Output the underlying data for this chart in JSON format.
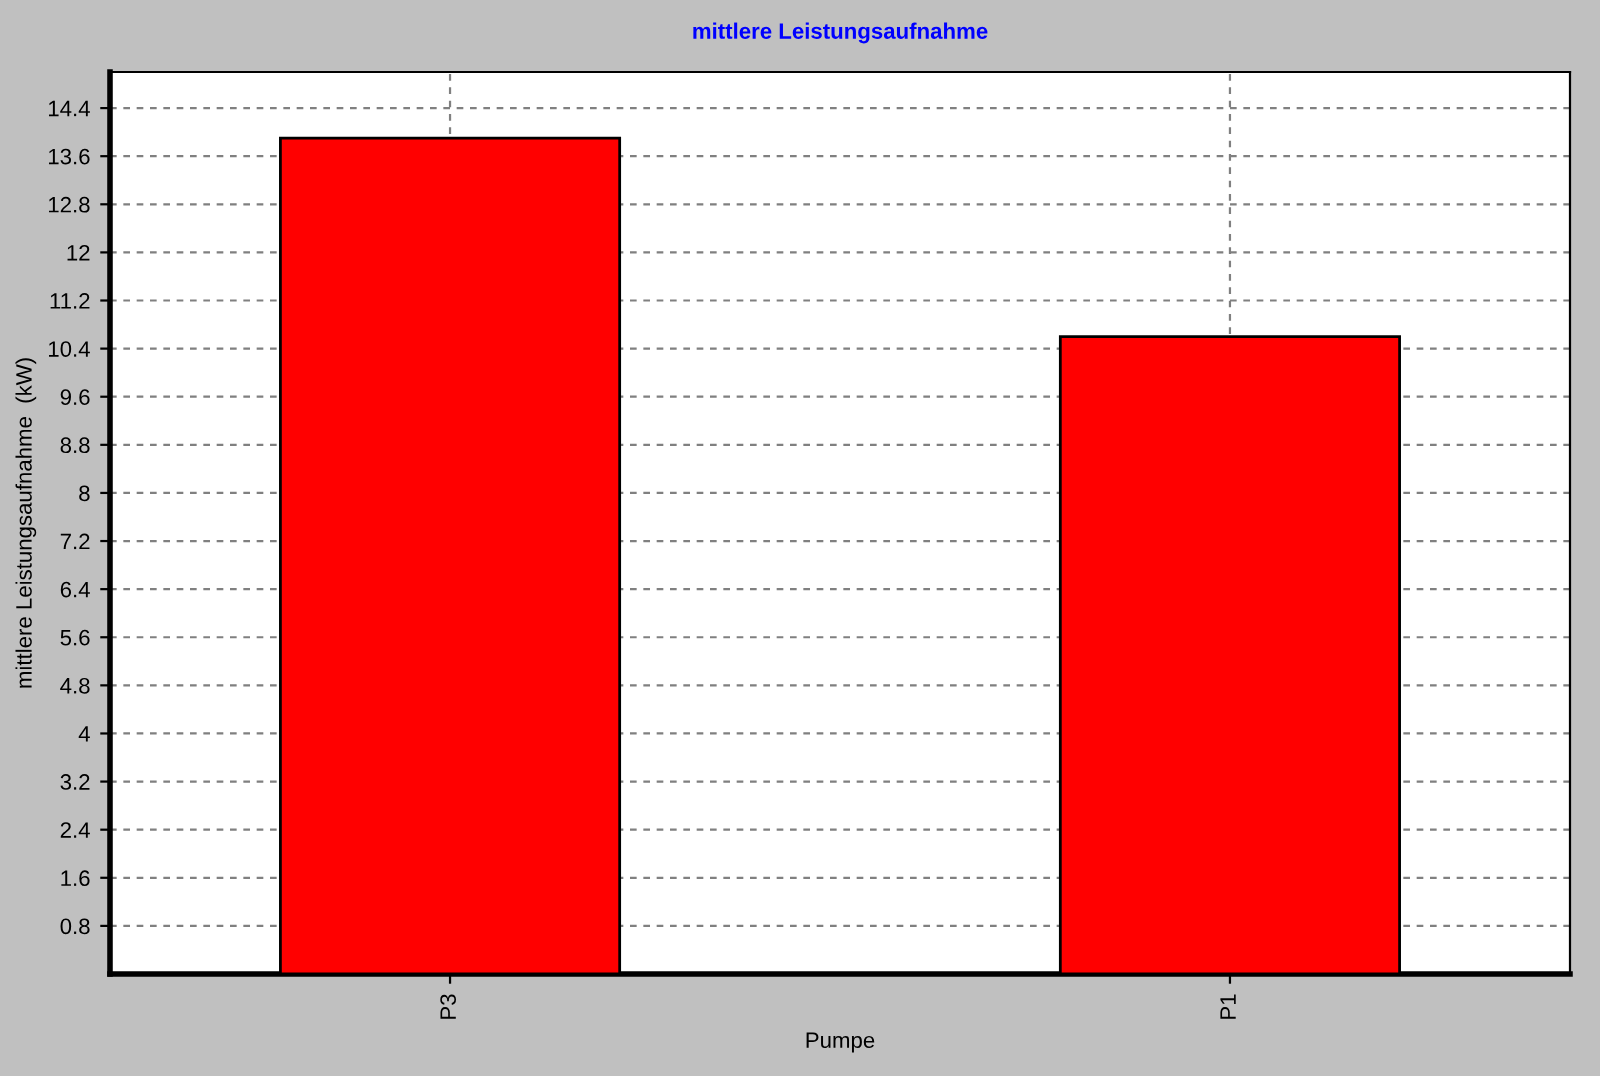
{
  "chart_data": {
    "type": "bar",
    "title": "mittlere Leistungsaufnahme",
    "xlabel": "Pumpe",
    "ylabel": "mittlere Leistungsaufnahme  (kW)",
    "categories": [
      "P3",
      "P1"
    ],
    "values": [
      13.9,
      10.6
    ],
    "color": "#ff0000",
    "ylim": [
      0,
      15
    ],
    "yticks": [
      0.8,
      1.6,
      2.4,
      3.2,
      4,
      4.8,
      5.6,
      6.4,
      7.2,
      8,
      8.8,
      9.6,
      10.4,
      11.2,
      12,
      12.8,
      13.6,
      14.4
    ],
    "grid": true
  }
}
